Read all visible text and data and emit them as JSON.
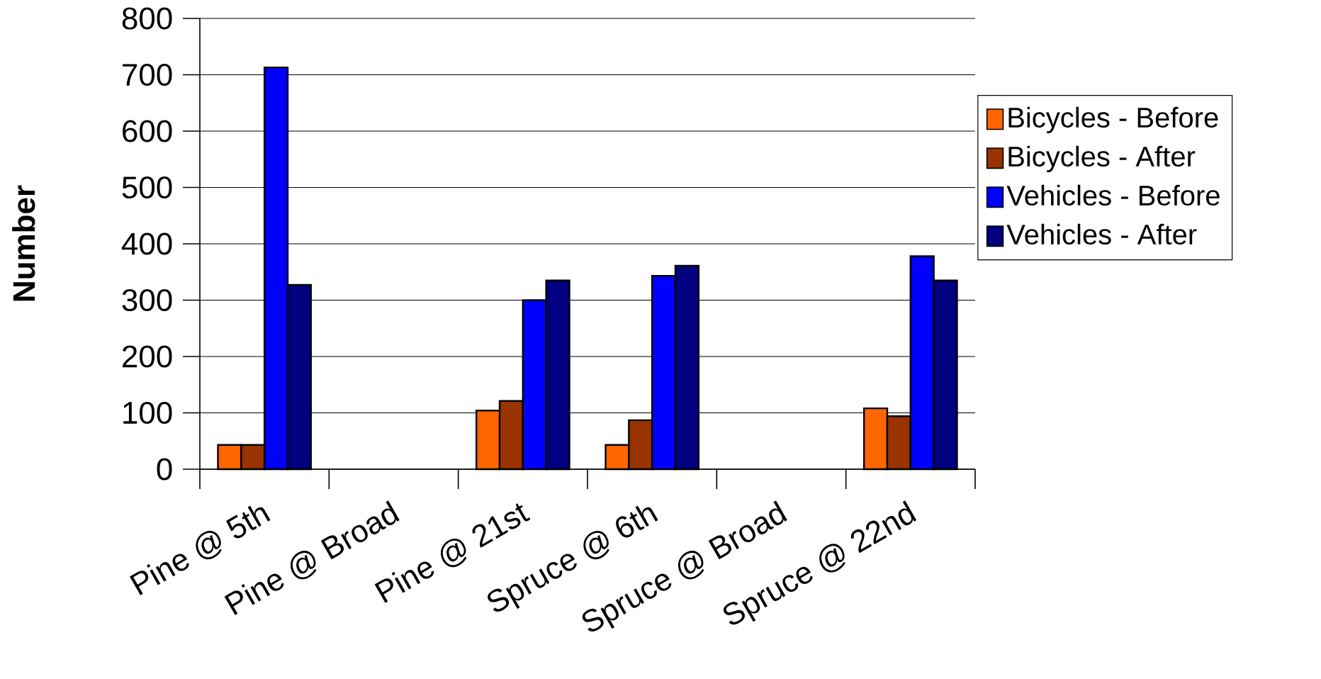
{
  "chart_data": {
    "type": "bar",
    "ylabel": "Number",
    "categories": [
      "Pine  @ 5th",
      "Pine  @ Broad",
      "Pine  @ 21st",
      "Spruce @ 6th",
      "Spruce @ Broad",
      "Spruce @ 22nd"
    ],
    "series": [
      {
        "name": "Bicycles - Before",
        "color": "#ff6600",
        "values": [
          43,
          null,
          104,
          43,
          null,
          108
        ]
      },
      {
        "name": "Bicycles - After",
        "color": "#993300",
        "values": [
          43,
          null,
          121,
          87,
          null,
          94
        ]
      },
      {
        "name": "Vehicles - Before",
        "color": "#0000ff",
        "values": [
          713,
          null,
          300,
          343,
          null,
          378
        ]
      },
      {
        "name": "Vehicles - After",
        "color": "#000080",
        "values": [
          327,
          null,
          335,
          361,
          null,
          335
        ]
      }
    ],
    "ylim": [
      0,
      800
    ],
    "yticks": [
      0,
      100,
      200,
      300,
      400,
      500,
      600,
      700,
      800
    ],
    "grid": "y",
    "legend": "right"
  }
}
